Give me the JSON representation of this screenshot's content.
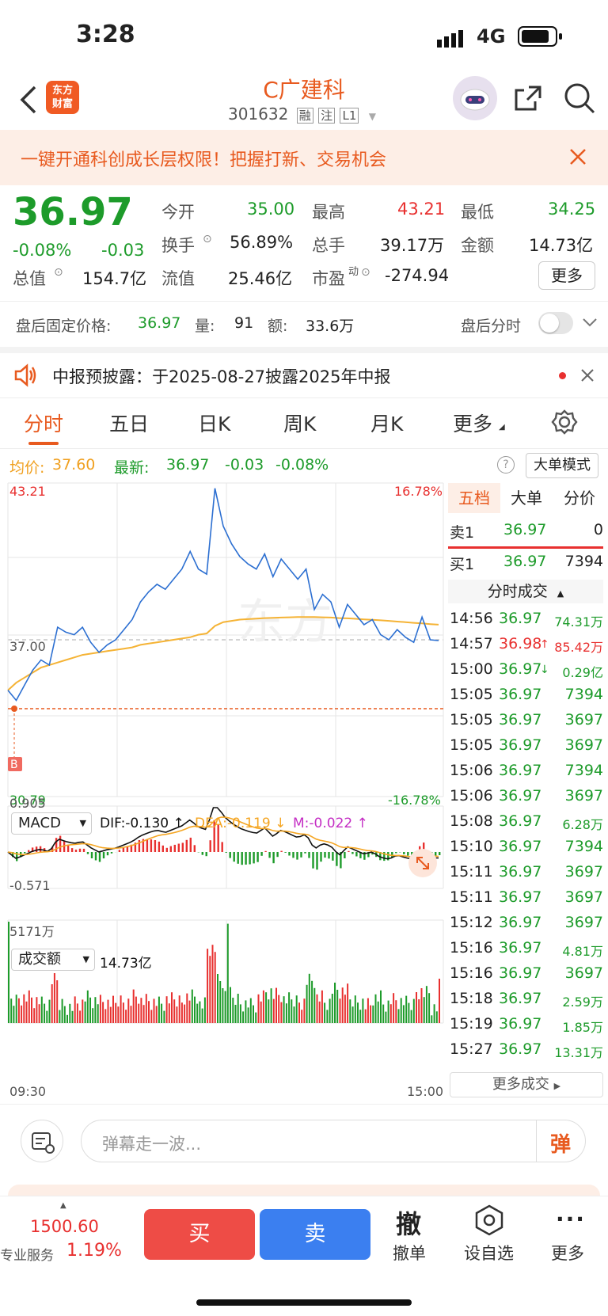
{
  "status_bar": {
    "time": "3:28",
    "network": "4G"
  },
  "header": {
    "logo_text_1": "东方",
    "logo_text_2": "财富",
    "title": "C广建科",
    "code": "301632",
    "tags": [
      "融",
      "注",
      "L1"
    ]
  },
  "banner": {
    "text": "一键开通科创成长层权限！把握打新、交易机会"
  },
  "quote": {
    "price": "36.97",
    "change_pct": "-0.08%",
    "change": "-0.03",
    "open_label": "今开",
    "open": "35.00",
    "high_label": "最高",
    "high": "43.21",
    "low_label": "最低",
    "low": "34.25",
    "turnover_label": "换手",
    "turnover": "56.89%",
    "volume_label": "总手",
    "volume": "39.17万",
    "amount_label": "金额",
    "amount": "14.73亿",
    "mktcap_label": "总值",
    "mktcap": "154.7亿",
    "float_label": "流值",
    "float": "25.46亿",
    "pe_label": "市盈",
    "pe_sup": "动",
    "pe": "-274.94",
    "more_label": "更多"
  },
  "after_hours": {
    "label": "盘后固定价格:",
    "price": "36.97",
    "qty_label": "量:",
    "qty": "91",
    "amt_label": "额:",
    "amt": "33.6万",
    "toggle_label": "盘后分时"
  },
  "notice": {
    "text": "中报预披露：于2025-08-27披露2025年中报"
  },
  "tabs": [
    "分时",
    "五日",
    "日K",
    "周K",
    "月K",
    "更多"
  ],
  "chart_header": {
    "avg_label": "均价:",
    "avg": "37.60",
    "latest_label": "最新:",
    "latest": "36.97",
    "chg": "-0.03",
    "chg_pct": "-0.08%",
    "mode_btn": "大单模式"
  },
  "chart_labels": {
    "y_top": "43.21",
    "y_mid": "37.00",
    "y_bot": "30.79",
    "pct_top": "16.78%",
    "pct_bot": "-16.78%",
    "buy_marker": "B",
    "macd_select": "MACD",
    "dif": "DIF:-0.130 ↑",
    "dea": "DEA:-0.119 ↓",
    "m": "M:-0.022 ↑",
    "macd_top": "0.905",
    "macd_bot": "-0.571",
    "vol_select": "成交额",
    "vol_total": "14.73亿",
    "vol_max": "5171万",
    "t_start": "09:30",
    "t_end": "15:00"
  },
  "side_panel": {
    "tabs": [
      "五档",
      "大单",
      "分价"
    ],
    "sell1": {
      "label": "卖1",
      "price": "36.97",
      "qty": "0"
    },
    "buy1": {
      "label": "买1",
      "price": "36.97",
      "qty": "7394"
    },
    "trades_title": "分时成交",
    "trades": [
      {
        "t": "14:56",
        "p": "36.97",
        "v": "74.31万",
        "arrow": ""
      },
      {
        "t": "14:57",
        "p": "36.98",
        "v": "85.42万",
        "arrow": "↑"
      },
      {
        "t": "15:00",
        "p": "36.97",
        "v": "0.29亿",
        "arrow": "↓"
      },
      {
        "t": "15:05",
        "p": "36.97",
        "v": "7394",
        "arrow": ""
      },
      {
        "t": "15:05",
        "p": "36.97",
        "v": "3697",
        "arrow": ""
      },
      {
        "t": "15:05",
        "p": "36.97",
        "v": "3697",
        "arrow": ""
      },
      {
        "t": "15:06",
        "p": "36.97",
        "v": "7394",
        "arrow": ""
      },
      {
        "t": "15:06",
        "p": "36.97",
        "v": "3697",
        "arrow": ""
      },
      {
        "t": "15:08",
        "p": "36.97",
        "v": "6.28万",
        "arrow": ""
      },
      {
        "t": "15:10",
        "p": "36.97",
        "v": "7394",
        "arrow": ""
      },
      {
        "t": "15:11",
        "p": "36.97",
        "v": "3697",
        "arrow": ""
      },
      {
        "t": "15:11",
        "p": "36.97",
        "v": "3697",
        "arrow": ""
      },
      {
        "t": "15:12",
        "p": "36.97",
        "v": "3697",
        "arrow": ""
      },
      {
        "t": "15:16",
        "p": "36.97",
        "v": "4.81万",
        "arrow": ""
      },
      {
        "t": "15:16",
        "p": "36.97",
        "v": "3697",
        "arrow": ""
      },
      {
        "t": "15:18",
        "p": "36.97",
        "v": "2.59万",
        "arrow": ""
      },
      {
        "t": "15:19",
        "p": "36.97",
        "v": "1.85万",
        "arrow": ""
      },
      {
        "t": "15:27",
        "p": "36.97",
        "v": "13.31万",
        "arrow": ""
      }
    ],
    "more_trades": "更多成交"
  },
  "comment": {
    "placeholder": "弹幕走一波...",
    "danmu_btn": "弹"
  },
  "bottom": {
    "index_value": "1500.60",
    "index_pct": "1.19%",
    "service_label": "专业服务",
    "buy": "买",
    "sell": "卖",
    "cancel_icon_text": "撤",
    "cancel": "撤单",
    "watch": "设自选",
    "more": "更多"
  },
  "chart_data": {
    "type": "line",
    "title": "",
    "ylim": [
      30.79,
      43.21
    ],
    "x_range": [
      "09:30",
      "15:00"
    ],
    "series": [
      {
        "name": "最新",
        "values": [
          35.0,
          34.6,
          35.2,
          35.8,
          36.2,
          36.0,
          37.5,
          37.3,
          37.2,
          37.5,
          36.9,
          36.5,
          36.8,
          37.0,
          37.4,
          37.8,
          38.5,
          38.9,
          39.2,
          39.0,
          39.4,
          39.8,
          40.5,
          39.8,
          39.6,
          43.0,
          41.5,
          40.8,
          40.3,
          40.0,
          39.8,
          40.4,
          39.5,
          40.2,
          39.8,
          39.4,
          39.8,
          38.2,
          38.8,
          38.5,
          37.5,
          38.4,
          38.0,
          37.6,
          37.8,
          37.2,
          37.0,
          37.4,
          37.1,
          36.9,
          37.9,
          37.0,
          36.97
        ]
      },
      {
        "name": "均价",
        "values": [
          35.0,
          35.3,
          35.5,
          35.7,
          35.9,
          36.0,
          36.1,
          36.2,
          36.3,
          36.4,
          36.45,
          36.5,
          36.55,
          36.6,
          36.65,
          36.7,
          36.8,
          36.85,
          36.9,
          36.95,
          37.0,
          37.05,
          37.1,
          37.2,
          37.25,
          37.55,
          37.7,
          37.75,
          37.8,
          37.82,
          37.84,
          37.86,
          37.87,
          37.88,
          37.89,
          37.9,
          37.9,
          37.9,
          37.89,
          37.88,
          37.86,
          37.85,
          37.83,
          37.81,
          37.79,
          37.77,
          37.75,
          37.72,
          37.7,
          37.67,
          37.65,
          37.62,
          37.6
        ]
      }
    ],
    "macd": {
      "ylim": [
        -0.571,
        0.905
      ],
      "dif": -0.13,
      "dea": -0.119,
      "m": -0.022
    },
    "volume": {
      "max": "5171万",
      "total": "14.73亿"
    }
  }
}
